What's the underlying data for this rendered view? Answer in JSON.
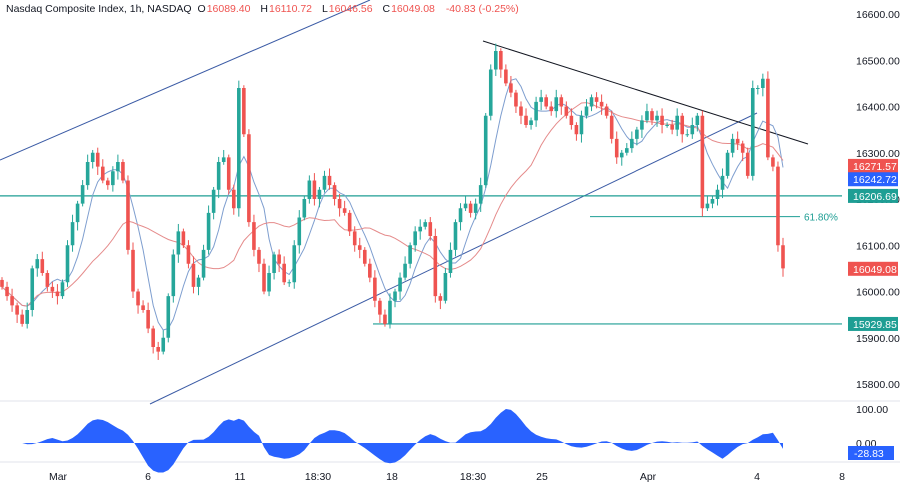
{
  "header": {
    "symbol": "Nasdaq Composite Index, 1h, NASDAQ",
    "open_key": "O",
    "open": "16089.40",
    "high_key": "H",
    "high": "16110.72",
    "low_key": "L",
    "low": "16046.56",
    "close_key": "C",
    "close": "16049.08",
    "change": "-40.83 (-0.25%)"
  },
  "colors": {
    "bull": "#26a69a",
    "bear": "#ef5350",
    "fast_ma": "#7e9ecf",
    "slow_ma": "#e58b8b",
    "channel": "#3b5ba5",
    "trendline": "#131722",
    "level": "#1e9e94",
    "osc": "#2962ff"
  },
  "chart_data": {
    "type": "candlestick",
    "price_axis": {
      "ticks": [
        "16600.00",
        "16500.00",
        "16400.00",
        "16300.00",
        "16200.00",
        "16100.00",
        "16000.00",
        "15900.00",
        "15800.00"
      ],
      "range": [
        15740,
        16610
      ]
    },
    "time_axis": {
      "labels": [
        "Mar",
        "6",
        "11",
        "18:30",
        "18",
        "18:30",
        "25",
        "Apr",
        "4",
        "8"
      ]
    },
    "price_labels": [
      {
        "text": "16271.57",
        "value": 16271.57,
        "color": "#ef5350"
      },
      {
        "text": "16242.72",
        "value": 16242.72,
        "color": "#2962ff"
      },
      {
        "text": "16206.69",
        "value": 16206.69,
        "color": "#1e9e94"
      },
      {
        "text": "16049.08",
        "value": 16049.08,
        "color": "#ef5350"
      },
      {
        "text": "15929.85",
        "value": 15929.85,
        "color": "#1e9e94"
      }
    ],
    "horizontal_levels": [
      {
        "value": 16206.69,
        "name": "support-resistance"
      },
      {
        "value": 15929.85,
        "name": "low-level"
      }
    ],
    "fib_level": {
      "label": "61.80%",
      "value": 16162
    },
    "closes": [
      16010,
      15990,
      15970,
      15950,
      15930,
      15960,
      16050,
      16070,
      16040,
      16010,
      16000,
      15990,
      16020,
      16100,
      16150,
      16190,
      16230,
      16280,
      16300,
      16270,
      16240,
      16230,
      16260,
      16280,
      16240,
      16090,
      16000,
      15970,
      15960,
      15920,
      15880,
      15870,
      15900,
      15990,
      16080,
      16130,
      16100,
      16060,
      16010,
      16030,
      16090,
      16170,
      16220,
      16280,
      16290,
      16220,
      16180,
      16440,
      16340,
      16150,
      16090,
      16060,
      16000,
      16040,
      16080,
      16060,
      16020,
      16020,
      16100,
      16160,
      16200,
      16240,
      16200,
      16220,
      16250,
      16230,
      16200,
      16180,
      16170,
      16130,
      16100,
      16090,
      16060,
      16030,
      15980,
      15950,
      15930,
      15980,
      16000,
      16030,
      16060,
      16100,
      16130,
      16140,
      16150,
      16120,
      15990,
      15980,
      16040,
      16090,
      16150,
      16180,
      16190,
      16170,
      16190,
      16230,
      16380,
      16480,
      16520,
      16480,
      16450,
      16430,
      16400,
      16380,
      16360,
      16370,
      16410,
      16420,
      16400,
      16390,
      16420,
      16400,
      16380,
      16360,
      16340,
      16380,
      16400,
      16420,
      16410,
      16400,
      16380,
      16330,
      16290,
      16300,
      16310,
      16330,
      16350,
      16370,
      16390,
      16370,
      16380,
      16360,
      16360,
      16350,
      16380,
      16340,
      16340,
      16360,
      16380,
      16180,
      16190,
      16200,
      16220,
      16250,
      16300,
      16330,
      16320,
      16300,
      16250,
      16440,
      16440,
      16460,
      16290,
      16270,
      16100,
      16050
    ],
    "oscillator": {
      "ticks": [
        "100.00",
        "0.00"
      ],
      "last": "-28.83"
    }
  }
}
